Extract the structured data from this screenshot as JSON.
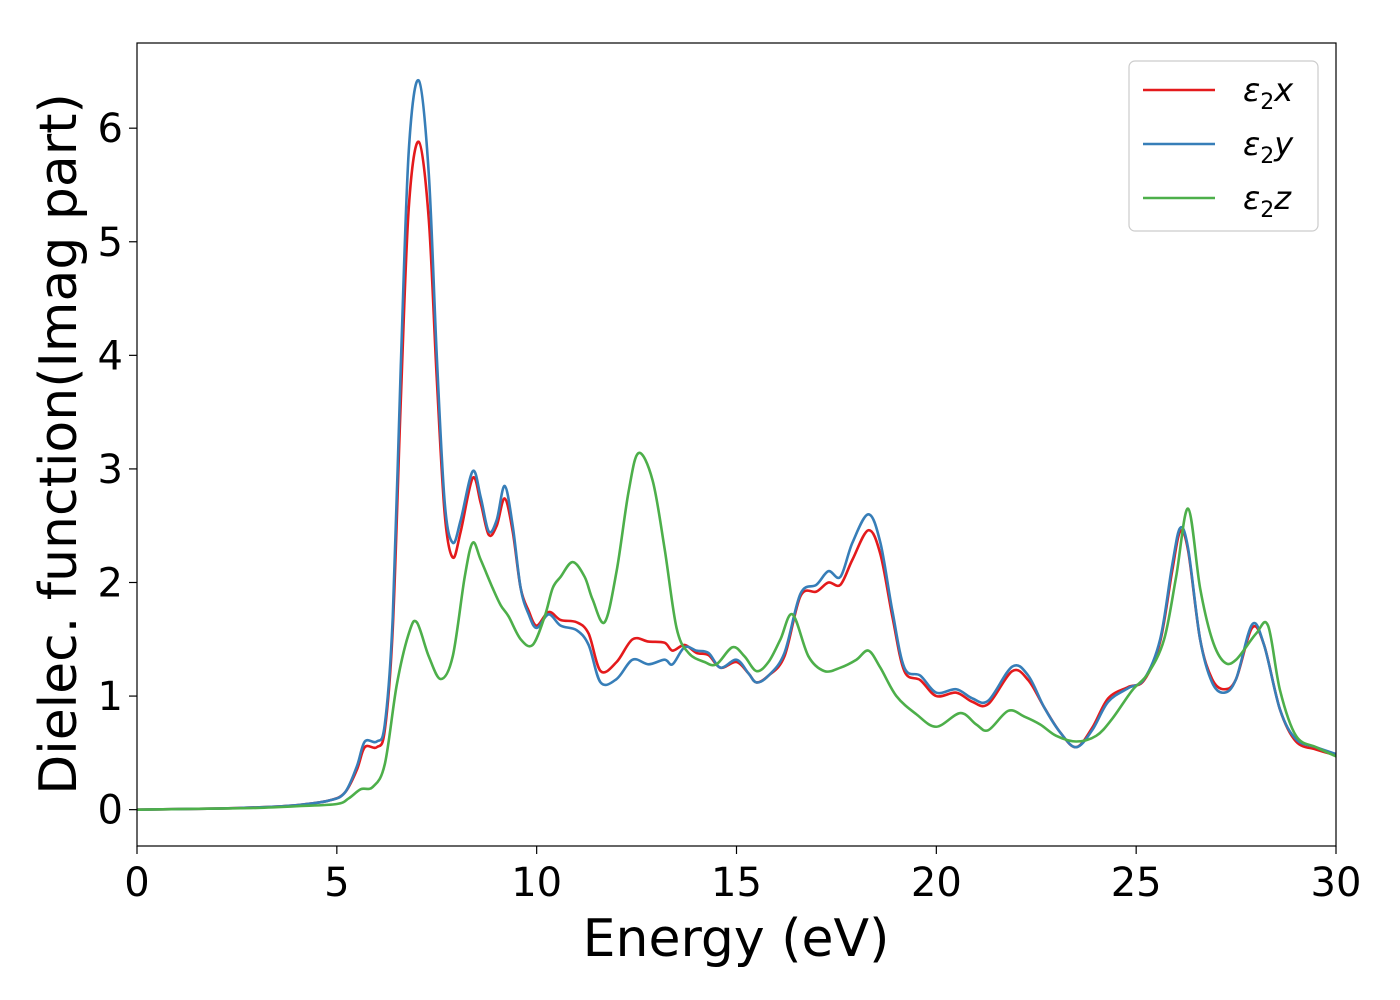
{
  "chart_data": {
    "type": "line",
    "xlabel": "Energy (eV)",
    "ylabel": "Dielec. function(Imag part)",
    "xlim": [
      0,
      30
    ],
    "ylim": [
      -0.32,
      6.75
    ],
    "xticks": [
      0,
      5,
      10,
      15,
      20,
      25,
      30
    ],
    "yticks": [
      0,
      1,
      2,
      3,
      4,
      5,
      6
    ],
    "grid": false,
    "legend_position": "top-right",
    "series": [
      {
        "name": "ε2x",
        "legend": {
          "base": "ε",
          "sub": "2",
          "tail": "x"
        },
        "color": "#e41a1c",
        "points": [
          [
            0,
            0
          ],
          [
            2,
            0.01
          ],
          [
            3,
            0.02
          ],
          [
            4,
            0.04
          ],
          [
            4.8,
            0.08
          ],
          [
            5.2,
            0.15
          ],
          [
            5.5,
            0.35
          ],
          [
            5.7,
            0.55
          ],
          [
            6.0,
            0.55
          ],
          [
            6.2,
            0.7
          ],
          [
            6.4,
            1.6
          ],
          [
            6.6,
            3.6
          ],
          [
            6.8,
            5.3
          ],
          [
            7.05,
            5.88
          ],
          [
            7.3,
            5.2
          ],
          [
            7.5,
            3.8
          ],
          [
            7.7,
            2.6
          ],
          [
            7.9,
            2.22
          ],
          [
            8.1,
            2.45
          ],
          [
            8.4,
            2.92
          ],
          [
            8.6,
            2.7
          ],
          [
            8.8,
            2.42
          ],
          [
            9.0,
            2.5
          ],
          [
            9.2,
            2.74
          ],
          [
            9.4,
            2.45
          ],
          [
            9.6,
            1.95
          ],
          [
            9.8,
            1.75
          ],
          [
            10.0,
            1.62
          ],
          [
            10.3,
            1.74
          ],
          [
            10.6,
            1.67
          ],
          [
            11.0,
            1.65
          ],
          [
            11.3,
            1.55
          ],
          [
            11.6,
            1.22
          ],
          [
            12.0,
            1.3
          ],
          [
            12.4,
            1.5
          ],
          [
            12.8,
            1.48
          ],
          [
            13.2,
            1.47
          ],
          [
            13.4,
            1.4
          ],
          [
            13.7,
            1.45
          ],
          [
            14.0,
            1.38
          ],
          [
            14.3,
            1.36
          ],
          [
            14.6,
            1.25
          ],
          [
            15.0,
            1.3
          ],
          [
            15.3,
            1.2
          ],
          [
            15.5,
            1.12
          ],
          [
            15.8,
            1.18
          ],
          [
            16.2,
            1.35
          ],
          [
            16.6,
            1.88
          ],
          [
            17.0,
            1.92
          ],
          [
            17.3,
            2.0
          ],
          [
            17.6,
            1.98
          ],
          [
            17.9,
            2.2
          ],
          [
            18.3,
            2.46
          ],
          [
            18.6,
            2.25
          ],
          [
            18.9,
            1.7
          ],
          [
            19.2,
            1.22
          ],
          [
            19.6,
            1.14
          ],
          [
            20.0,
            1.0
          ],
          [
            20.5,
            1.03
          ],
          [
            20.9,
            0.95
          ],
          [
            21.3,
            0.93
          ],
          [
            21.9,
            1.22
          ],
          [
            22.3,
            1.14
          ],
          [
            22.7,
            0.9
          ],
          [
            23.1,
            0.68
          ],
          [
            23.5,
            0.55
          ],
          [
            23.9,
            0.72
          ],
          [
            24.3,
            0.98
          ],
          [
            24.8,
            1.08
          ],
          [
            25.2,
            1.14
          ],
          [
            25.6,
            1.48
          ],
          [
            25.9,
            2.1
          ],
          [
            26.1,
            2.45
          ],
          [
            26.3,
            2.28
          ],
          [
            26.6,
            1.5
          ],
          [
            26.9,
            1.15
          ],
          [
            27.2,
            1.06
          ],
          [
            27.5,
            1.15
          ],
          [
            27.9,
            1.6
          ],
          [
            28.2,
            1.45
          ],
          [
            28.6,
            0.88
          ],
          [
            29.0,
            0.6
          ],
          [
            29.5,
            0.53
          ],
          [
            30,
            0.48
          ]
        ]
      },
      {
        "name": "ε2y",
        "legend": {
          "base": "ε",
          "sub": "2",
          "tail": "y"
        },
        "color": "#377eb8",
        "points": [
          [
            0,
            0
          ],
          [
            2,
            0.01
          ],
          [
            3,
            0.02
          ],
          [
            4,
            0.04
          ],
          [
            4.8,
            0.08
          ],
          [
            5.2,
            0.15
          ],
          [
            5.5,
            0.38
          ],
          [
            5.7,
            0.6
          ],
          [
            6.0,
            0.6
          ],
          [
            6.2,
            0.75
          ],
          [
            6.4,
            1.7
          ],
          [
            6.6,
            3.9
          ],
          [
            6.8,
            5.8
          ],
          [
            7.05,
            6.42
          ],
          [
            7.3,
            5.6
          ],
          [
            7.5,
            4.0
          ],
          [
            7.7,
            2.7
          ],
          [
            7.9,
            2.35
          ],
          [
            8.1,
            2.55
          ],
          [
            8.4,
            2.98
          ],
          [
            8.6,
            2.75
          ],
          [
            8.8,
            2.45
          ],
          [
            9.0,
            2.55
          ],
          [
            9.2,
            2.85
          ],
          [
            9.4,
            2.5
          ],
          [
            9.6,
            1.95
          ],
          [
            9.8,
            1.72
          ],
          [
            10.0,
            1.6
          ],
          [
            10.3,
            1.72
          ],
          [
            10.6,
            1.62
          ],
          [
            11.0,
            1.58
          ],
          [
            11.3,
            1.45
          ],
          [
            11.6,
            1.12
          ],
          [
            12.0,
            1.15
          ],
          [
            12.4,
            1.32
          ],
          [
            12.8,
            1.28
          ],
          [
            13.2,
            1.32
          ],
          [
            13.4,
            1.28
          ],
          [
            13.7,
            1.43
          ],
          [
            14.0,
            1.4
          ],
          [
            14.3,
            1.38
          ],
          [
            14.6,
            1.25
          ],
          [
            15.0,
            1.32
          ],
          [
            15.3,
            1.2
          ],
          [
            15.5,
            1.12
          ],
          [
            15.8,
            1.18
          ],
          [
            16.2,
            1.38
          ],
          [
            16.6,
            1.9
          ],
          [
            17.0,
            1.98
          ],
          [
            17.3,
            2.1
          ],
          [
            17.6,
            2.05
          ],
          [
            17.9,
            2.35
          ],
          [
            18.3,
            2.6
          ],
          [
            18.6,
            2.35
          ],
          [
            18.9,
            1.75
          ],
          [
            19.2,
            1.25
          ],
          [
            19.6,
            1.18
          ],
          [
            20.0,
            1.03
          ],
          [
            20.5,
            1.06
          ],
          [
            20.9,
            0.98
          ],
          [
            21.3,
            0.96
          ],
          [
            21.9,
            1.26
          ],
          [
            22.3,
            1.18
          ],
          [
            22.7,
            0.9
          ],
          [
            23.1,
            0.68
          ],
          [
            23.5,
            0.55
          ],
          [
            23.9,
            0.7
          ],
          [
            24.3,
            0.95
          ],
          [
            24.8,
            1.07
          ],
          [
            25.2,
            1.15
          ],
          [
            25.6,
            1.5
          ],
          [
            25.9,
            2.15
          ],
          [
            26.1,
            2.48
          ],
          [
            26.3,
            2.3
          ],
          [
            26.6,
            1.5
          ],
          [
            26.9,
            1.12
          ],
          [
            27.2,
            1.03
          ],
          [
            27.5,
            1.15
          ],
          [
            27.9,
            1.63
          ],
          [
            28.2,
            1.45
          ],
          [
            28.6,
            0.88
          ],
          [
            29.0,
            0.62
          ],
          [
            29.5,
            0.55
          ],
          [
            30,
            0.49
          ]
        ]
      },
      {
        "name": "ε2z",
        "legend": {
          "base": "ε",
          "sub": "2",
          "tail": "z"
        },
        "color": "#4daf4a",
        "points": [
          [
            0,
            0
          ],
          [
            2,
            0.01
          ],
          [
            3,
            0.015
          ],
          [
            4,
            0.03
          ],
          [
            5.0,
            0.05
          ],
          [
            5.3,
            0.1
          ],
          [
            5.6,
            0.18
          ],
          [
            5.9,
            0.2
          ],
          [
            6.2,
            0.4
          ],
          [
            6.5,
            1.1
          ],
          [
            6.8,
            1.55
          ],
          [
            7.0,
            1.65
          ],
          [
            7.3,
            1.35
          ],
          [
            7.6,
            1.15
          ],
          [
            7.9,
            1.35
          ],
          [
            8.2,
            2.05
          ],
          [
            8.4,
            2.35
          ],
          [
            8.6,
            2.2
          ],
          [
            8.9,
            1.95
          ],
          [
            9.1,
            1.8
          ],
          [
            9.3,
            1.7
          ],
          [
            9.6,
            1.5
          ],
          [
            9.9,
            1.45
          ],
          [
            10.2,
            1.7
          ],
          [
            10.4,
            1.95
          ],
          [
            10.6,
            2.05
          ],
          [
            10.9,
            2.18
          ],
          [
            11.2,
            2.05
          ],
          [
            11.4,
            1.85
          ],
          [
            11.7,
            1.65
          ],
          [
            12.0,
            2.1
          ],
          [
            12.3,
            2.8
          ],
          [
            12.55,
            3.14
          ],
          [
            12.9,
            2.9
          ],
          [
            13.2,
            2.3
          ],
          [
            13.5,
            1.6
          ],
          [
            13.8,
            1.38
          ],
          [
            14.2,
            1.3
          ],
          [
            14.5,
            1.28
          ],
          [
            14.9,
            1.43
          ],
          [
            15.2,
            1.35
          ],
          [
            15.5,
            1.22
          ],
          [
            15.8,
            1.3
          ],
          [
            16.1,
            1.5
          ],
          [
            16.4,
            1.72
          ],
          [
            16.8,
            1.35
          ],
          [
            17.2,
            1.22
          ],
          [
            17.6,
            1.25
          ],
          [
            18.0,
            1.32
          ],
          [
            18.3,
            1.4
          ],
          [
            18.6,
            1.25
          ],
          [
            19.0,
            1.0
          ],
          [
            19.5,
            0.84
          ],
          [
            20.0,
            0.73
          ],
          [
            20.6,
            0.85
          ],
          [
            21.0,
            0.75
          ],
          [
            21.3,
            0.7
          ],
          [
            21.8,
            0.87
          ],
          [
            22.2,
            0.82
          ],
          [
            22.6,
            0.75
          ],
          [
            23.0,
            0.65
          ],
          [
            23.5,
            0.6
          ],
          [
            24.0,
            0.65
          ],
          [
            24.4,
            0.8
          ],
          [
            24.9,
            1.05
          ],
          [
            25.3,
            1.2
          ],
          [
            25.7,
            1.5
          ],
          [
            26.0,
            2.05
          ],
          [
            26.3,
            2.65
          ],
          [
            26.6,
            1.95
          ],
          [
            26.9,
            1.5
          ],
          [
            27.2,
            1.3
          ],
          [
            27.5,
            1.32
          ],
          [
            28.0,
            1.55
          ],
          [
            28.3,
            1.62
          ],
          [
            28.6,
            1.05
          ],
          [
            29.0,
            0.65
          ],
          [
            29.5,
            0.55
          ],
          [
            30,
            0.47
          ]
        ]
      }
    ]
  }
}
